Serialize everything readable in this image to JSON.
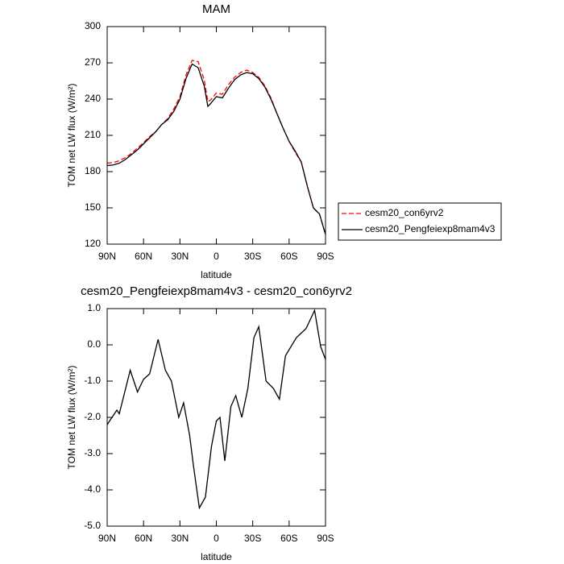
{
  "chart_data": [
    {
      "type": "line",
      "title": "MAM",
      "xlabel": "latitude",
      "ylabel": "TOM net LW flux (W/m²)",
      "x": [
        90,
        85,
        80,
        75,
        70,
        65,
        60,
        55,
        50,
        45,
        40,
        35,
        30,
        25,
        20,
        15,
        10,
        7,
        5,
        0,
        -5,
        -10,
        -15,
        -20,
        -25,
        -30,
        -35,
        -40,
        -45,
        -50,
        -55,
        -60,
        -65,
        -70,
        -75,
        -80,
        -85,
        -90
      ],
      "series": [
        {
          "name": "cesm20_con6yrv2",
          "color": "#ff0000",
          "linestyle": "dashed",
          "values": [
            187,
            187.5,
            189,
            191.5,
            195,
            199.5,
            204,
            209,
            213,
            219,
            224,
            232,
            242,
            260,
            272,
            271,
            256,
            238,
            239,
            245,
            244,
            252,
            258,
            262,
            264,
            262,
            258,
            251,
            241,
            228,
            216,
            205,
            196,
            188,
            168,
            150,
            145,
            128
          ]
        },
        {
          "name": "cesm20_Pengfeiexp8mam4v3",
          "color": "#000000",
          "linestyle": "solid",
          "values": [
            185,
            185.5,
            187,
            190,
            194,
            198,
            203,
            208,
            213,
            219,
            223,
            230,
            240,
            257,
            269,
            266,
            251,
            234,
            236,
            242,
            241,
            249,
            256,
            260,
            262,
            261,
            257,
            250,
            240,
            228,
            216,
            205,
            197,
            188,
            168,
            150,
            145,
            128
          ]
        }
      ],
      "xlim": [
        90,
        -90
      ],
      "xticks": [
        {
          "value": 90,
          "label": "90N"
        },
        {
          "value": 60,
          "label": "60N"
        },
        {
          "value": 30,
          "label": "30N"
        },
        0,
        {
          "value": -30,
          "label": "30S"
        },
        {
          "value": -60,
          "label": "60S"
        },
        {
          "value": -90,
          "label": "90S"
        }
      ],
      "ylim": [
        120,
        300
      ],
      "yticks": [
        120,
        150,
        180,
        210,
        240,
        270,
        300
      ],
      "legend": "right"
    },
    {
      "type": "line",
      "title": "cesm20_Pengfeiexp8mam4v3 - cesm20_con6yrv2",
      "xlabel": "latitude",
      "ylabel": "TOM net LW flux (W/m²)",
      "color": "#000000",
      "x": [
        90,
        82,
        80,
        71,
        65,
        60,
        55,
        48,
        42,
        37,
        31,
        27,
        22,
        19,
        14,
        9,
        4,
        0,
        -3,
        -7,
        -12,
        -16,
        -21,
        -26,
        -31,
        -35,
        -41,
        -47,
        -52,
        -57,
        -66,
        -74,
        -81,
        -86,
        -90
      ],
      "values": [
        -2.2,
        -1.8,
        -1.9,
        -0.7,
        -1.3,
        -0.95,
        -0.8,
        0.15,
        -0.7,
        -1.0,
        -2.0,
        -1.6,
        -2.5,
        -3.3,
        -4.5,
        -4.2,
        -2.8,
        -2.1,
        -2.0,
        -3.2,
        -1.7,
        -1.4,
        -2.0,
        -1.2,
        0.2,
        0.5,
        -1.0,
        -1.2,
        -1.5,
        -0.3,
        0.2,
        0.45,
        0.95,
        -0.05,
        -0.4
      ],
      "xlim": [
        90,
        -90
      ],
      "xticks": [
        {
          "value": 90,
          "label": "90N"
        },
        {
          "value": 60,
          "label": "60N"
        },
        {
          "value": 30,
          "label": "30N"
        },
        0,
        {
          "value": -30,
          "label": "30S"
        },
        {
          "value": -60,
          "label": "60S"
        },
        {
          "value": -90,
          "label": "90S"
        }
      ],
      "ylim": [
        -5,
        1
      ],
      "yticks": [
        {
          "value": -5,
          "label": "-5.0"
        },
        {
          "value": -4,
          "label": "-4.0"
        },
        {
          "value": -3,
          "label": "-3.0"
        },
        {
          "value": -2,
          "label": "-2.0"
        },
        {
          "value": -1,
          "label": "-1.0"
        },
        {
          "value": 0,
          "label": "0.0"
        },
        {
          "value": 1,
          "label": "1.0"
        }
      ]
    }
  ]
}
